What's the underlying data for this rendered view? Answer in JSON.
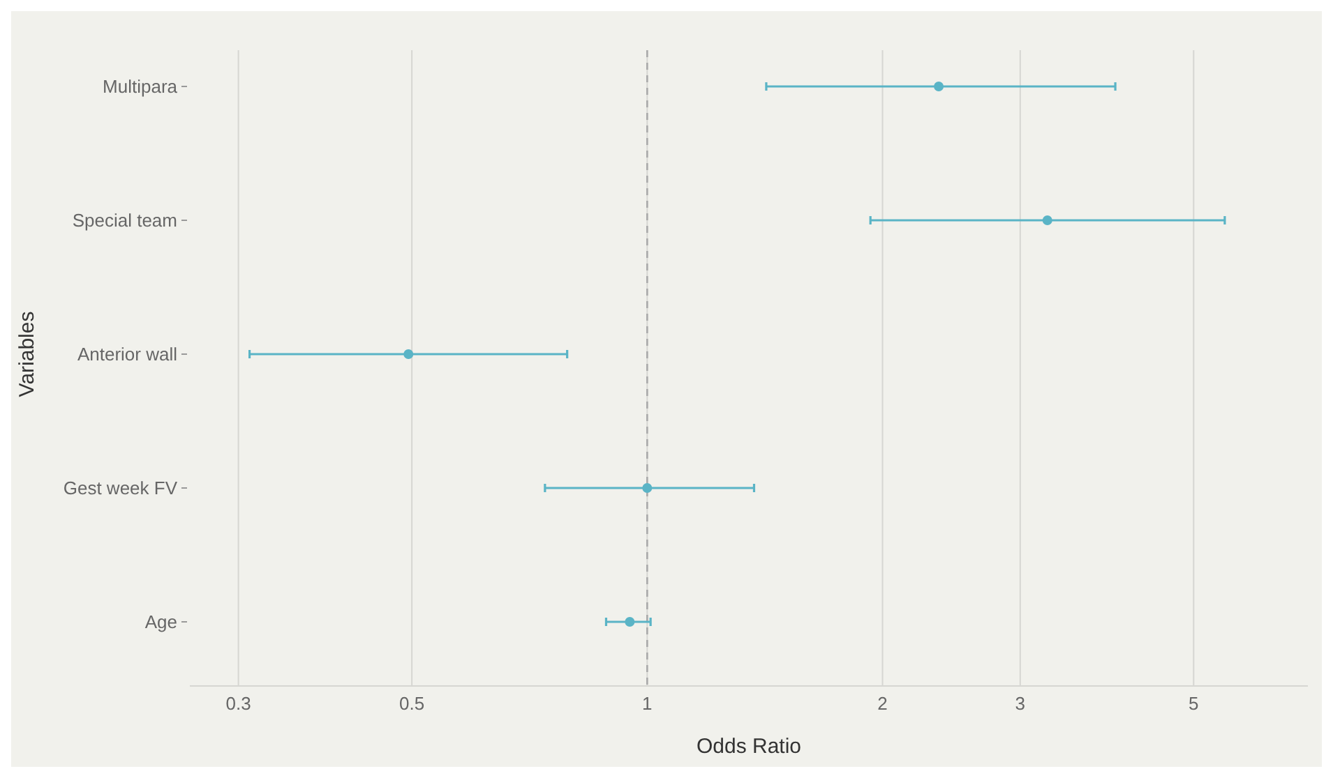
{
  "chart_data": {
    "type": "scatter",
    "orientation": "horizontal",
    "xlabel": "Odds Ratio",
    "ylabel": "Variables",
    "categories": [
      "Multipara",
      "Special team",
      "Anterior wall",
      "Gest week FV",
      "Age"
    ],
    "values": [
      2.36,
      3.25,
      0.495,
      1.0,
      0.95
    ],
    "errors": [
      [
        1.42,
        3.97
      ],
      [
        1.93,
        5.48
      ],
      [
        0.31,
        0.79
      ],
      [
        0.74,
        1.37
      ],
      [
        0.886,
        1.01
      ]
    ],
    "color": "#5ab4c6",
    "marker": "circle",
    "log": "x",
    "xlim": [
      0.26,
      7
    ],
    "xticks": [
      0.3,
      0.5,
      1,
      2,
      3,
      5
    ],
    "grid": "x",
    "ref_lines": [
      {
        "axis": "x",
        "value": 1,
        "line_style": "dashed",
        "color": "#aaaaaa"
      }
    ]
  }
}
